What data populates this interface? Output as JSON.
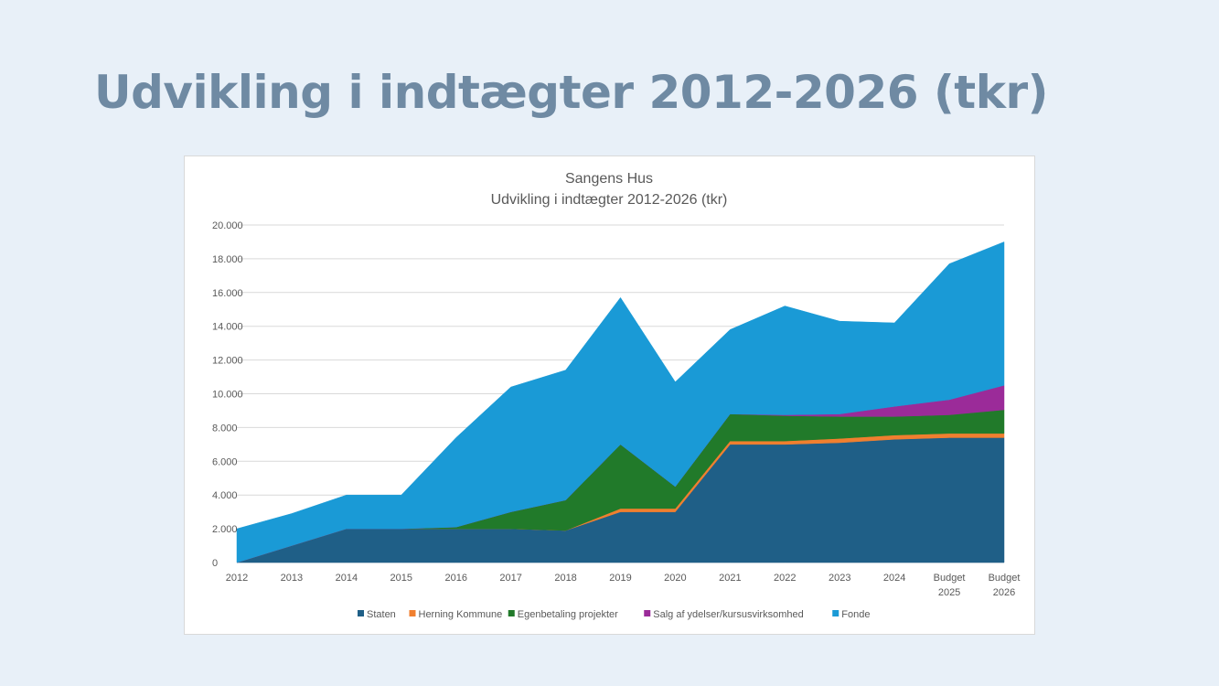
{
  "slide": {
    "title": "Udvikling i indtægter 2012-2026 (tkr)"
  },
  "chart_data": {
    "type": "area",
    "stacked": true,
    "title": "Sangens Hus",
    "subtitle": "Udvikling i indtægter 2012-2026 (tkr)",
    "categories": [
      "2012",
      "2013",
      "2014",
      "2015",
      "2016",
      "2017",
      "2018",
      "2019",
      "2020",
      "2021",
      "2022",
      "2023",
      "2024",
      "Budget 2025",
      "Budget 2026"
    ],
    "ylim": [
      0,
      20000
    ],
    "yticks": [
      0,
      2000,
      4000,
      6000,
      8000,
      10000,
      12000,
      14000,
      16000,
      18000,
      20000
    ],
    "ytick_labels": [
      "0",
      "2.000",
      "4.000",
      "6.000",
      "8.000",
      "10.000",
      "12.000",
      "14.000",
      "16.000",
      "18.000",
      "20.000"
    ],
    "grid": true,
    "legend_position": "bottom",
    "series": [
      {
        "name": "Staten",
        "color": "#1f5f87",
        "values": [
          0,
          1000,
          2000,
          2000,
          2000,
          2000,
          1900,
          3000,
          3000,
          7000,
          7000,
          7100,
          7300,
          7400,
          7400
        ]
      },
      {
        "name": "Herning Kommune",
        "color": "#f07f2f",
        "values": [
          0,
          0,
          0,
          0,
          0,
          0,
          0,
          200,
          200,
          200,
          200,
          250,
          250,
          250,
          250
        ]
      },
      {
        "name": "Egenbetaling projekter",
        "color": "#217a2a",
        "values": [
          0,
          0,
          0,
          0,
          100,
          1000,
          1800,
          3800,
          1300,
          1600,
          1500,
          1300,
          1100,
          1100,
          1400
        ]
      },
      {
        "name": "Salg af ydelser/kursusvirksomhed",
        "color": "#9b2b99",
        "values": [
          0,
          0,
          0,
          0,
          0,
          0,
          0,
          0,
          0,
          0,
          50,
          150,
          600,
          900,
          1450
        ]
      },
      {
        "name": "Fonde",
        "color": "#1a9ad6",
        "values": [
          2000,
          1900,
          2000,
          2000,
          5300,
          7400,
          7700,
          8700,
          6200,
          5000,
          6450,
          5500,
          4950,
          8050,
          8500
        ]
      }
    ]
  }
}
